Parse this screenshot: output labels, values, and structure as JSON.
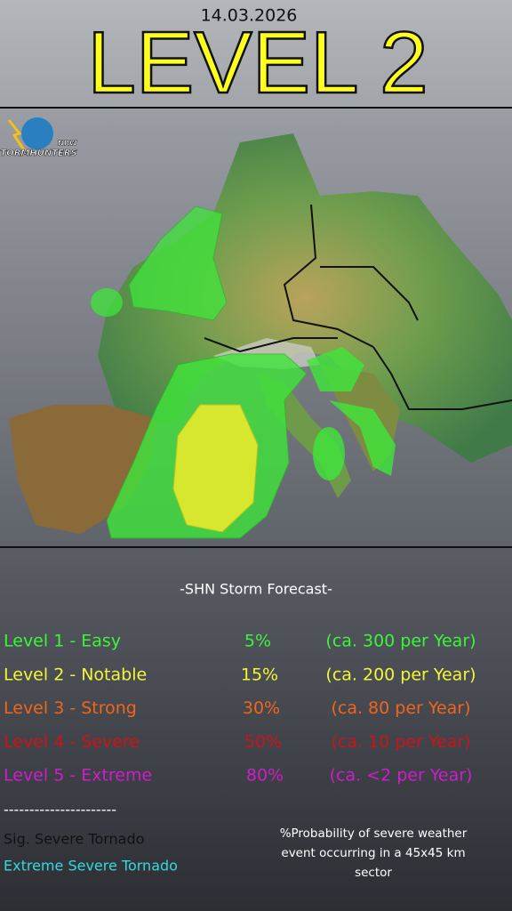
{
  "header": {
    "date": "14.03.2026",
    "title": "LEVEL 2"
  },
  "logo": {
    "badge": "NRW",
    "name": "STORMHUNTERS"
  },
  "legend": {
    "title": "-SHN Storm Forecast-",
    "levels": [
      {
        "name": "Level 1 - Easy",
        "probability": "5%",
        "frequency": "(ca. 300 per Year)",
        "color": "#3cf53a"
      },
      {
        "name": "Level 2 - Notable",
        "probability": "15%",
        "frequency": "(ca. 200 per Year)",
        "color": "#f4f43a"
      },
      {
        "name": "Level 3 - Strong",
        "probability": "30%",
        "frequency": "(ca. 80 per Year)",
        "color": "#f0661a"
      },
      {
        "name": "Level 4 - Severe",
        "probability": "50%",
        "frequency": "(ca. 10 per Year)",
        "color": "#cc1418"
      },
      {
        "name": "Level 5 - Extreme",
        "probability": "80%",
        "frequency": "(ca.  <2 per Year)",
        "color": "#d01ccc"
      }
    ],
    "separator": "----------------------",
    "tornado": [
      {
        "label": "Sig. Severe Tornado",
        "color": "#111111"
      },
      {
        "label": "Extreme Severe Tornado",
        "color": "#35d8dc"
      }
    ],
    "note": [
      "%Probability of severe weather",
      "event occurring in a 45x45 km",
      "sector"
    ]
  }
}
